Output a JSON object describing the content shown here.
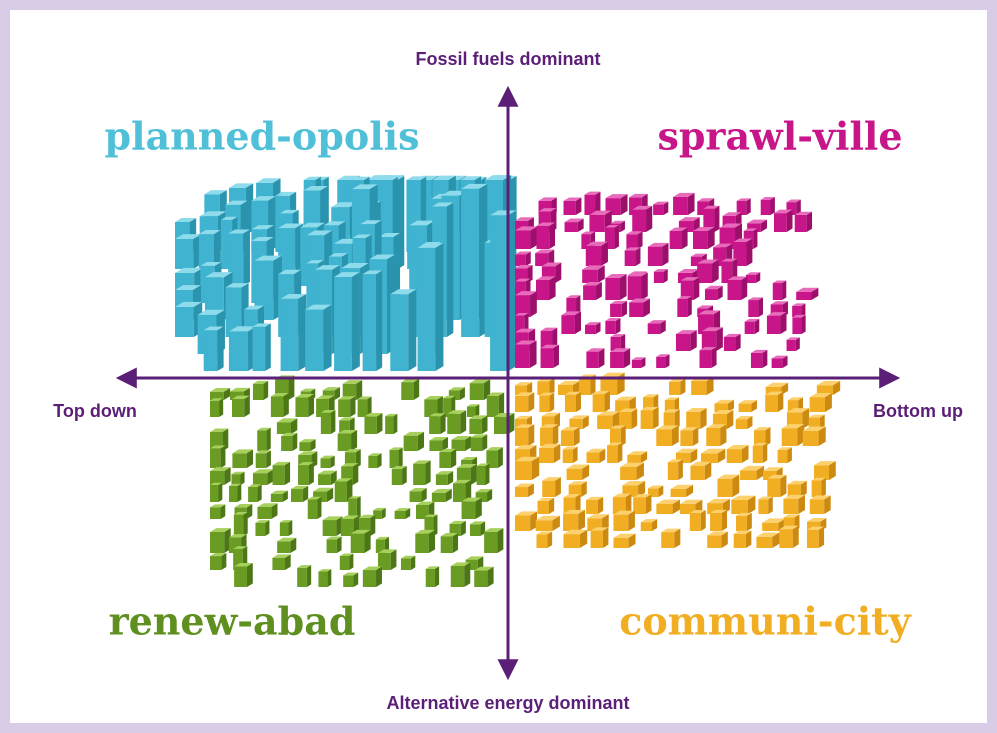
{
  "axes": {
    "top": "Fossil fuels dominant",
    "bottom": "Alternative energy dominant",
    "left": "Top down",
    "right": "Bottom up"
  },
  "quadrants": [
    {
      "label": "planned-opolis"
    },
    {
      "label": "sprawl-ville"
    },
    {
      "label": "renew-abad"
    },
    {
      "label": "communi-city"
    }
  ]
}
